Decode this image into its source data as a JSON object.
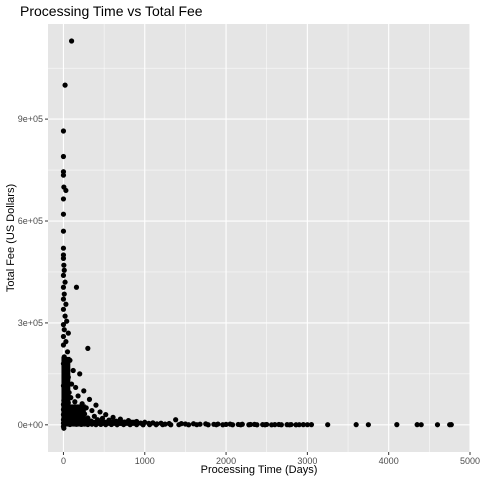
{
  "chart_data": {
    "type": "scatter",
    "title": "Processing Time vs Total Fee",
    "xlabel": "Processing Time (Days)",
    "ylabel": "Total Fee (US Dollars)",
    "xlim": [
      -190,
      5000
    ],
    "ylim": [
      -80000,
      1180000
    ],
    "x_ticks": [
      0,
      1000,
      2000,
      3000,
      4000,
      5000
    ],
    "x_tick_labels": [
      "0",
      "1000",
      "2000",
      "3000",
      "4000",
      "5000"
    ],
    "y_ticks": [
      0,
      300000,
      600000,
      900000
    ],
    "y_tick_labels": [
      "0e+00",
      "3e+05",
      "6e+05",
      "9e+05"
    ],
    "grid": true,
    "background": "#e5e5e5",
    "grid_color": "#ffffff",
    "point_color": "#000000",
    "points": [
      [
        100,
        1130000
      ],
      [
        20,
        1000000
      ],
      [
        0,
        865000
      ],
      [
        0,
        790000
      ],
      [
        0,
        745000
      ],
      [
        0,
        735000
      ],
      [
        5,
        700000
      ],
      [
        30,
        690000
      ],
      [
        0,
        665000
      ],
      [
        0,
        620000
      ],
      [
        0,
        570000
      ],
      [
        0,
        520000
      ],
      [
        0,
        500000
      ],
      [
        0,
        490000
      ],
      [
        5,
        470000
      ],
      [
        10,
        455000
      ],
      [
        0,
        440000
      ],
      [
        20,
        420000
      ],
      [
        0,
        405000
      ],
      [
        160,
        405000
      ],
      [
        10,
        385000
      ],
      [
        0,
        370000
      ],
      [
        30,
        355000
      ],
      [
        0,
        340000
      ],
      [
        20,
        320000
      ],
      [
        40,
        305000
      ],
      [
        0,
        295000
      ],
      [
        10,
        280000
      ],
      [
        60,
        270000
      ],
      [
        0,
        260000
      ],
      [
        30,
        245000
      ],
      [
        0,
        235000
      ],
      [
        300,
        225000
      ],
      [
        50,
        215000
      ],
      [
        10,
        200000
      ],
      [
        80,
        190000
      ],
      [
        0,
        180000
      ],
      [
        30,
        170000
      ],
      [
        120,
        160000
      ],
      [
        200,
        150000
      ],
      [
        60,
        140000
      ],
      [
        10,
        130000
      ],
      [
        100,
        120000
      ],
      [
        0,
        115000
      ],
      [
        150,
        110000
      ],
      [
        40,
        105000
      ],
      [
        250,
        100000
      ],
      [
        70,
        95000
      ],
      [
        20,
        90000
      ],
      [
        180,
        85000
      ],
      [
        90,
        80000
      ],
      [
        320,
        75000
      ],
      [
        5,
        72000
      ],
      [
        140,
        68000
      ],
      [
        60,
        65000
      ],
      [
        230,
        62000
      ],
      [
        400,
        58000
      ],
      [
        30,
        56000
      ],
      [
        110,
        52000
      ],
      [
        280,
        50000
      ],
      [
        190,
        46000
      ],
      [
        15,
        44000
      ],
      [
        350,
        42000
      ],
      [
        80,
        40000
      ],
      [
        450,
        38000
      ],
      [
        130,
        36000
      ],
      [
        40,
        34000
      ],
      [
        260,
        32000
      ],
      [
        520,
        30000
      ],
      [
        170,
        28000
      ],
      [
        60,
        26000
      ],
      [
        380,
        25000
      ],
      [
        220,
        24000
      ],
      [
        610,
        22000
      ],
      [
        100,
        21000
      ],
      [
        300,
        20000
      ],
      [
        480,
        19000
      ],
      [
        20,
        18000
      ],
      [
        700,
        17000
      ],
      [
        150,
        16000
      ],
      [
        420,
        15000
      ],
      [
        560,
        14000
      ],
      [
        250,
        13000
      ],
      [
        800,
        12500
      ],
      [
        90,
        12000
      ],
      [
        340,
        11000
      ],
      [
        650,
        10500
      ],
      [
        900,
        10000
      ],
      [
        50,
        9500
      ],
      [
        470,
        9000
      ],
      [
        200,
        8500
      ],
      [
        750,
        8000
      ],
      [
        1000,
        7500
      ],
      [
        580,
        7000
      ],
      [
        120,
        6500
      ],
      [
        860,
        6000
      ],
      [
        1100,
        5800
      ],
      [
        380,
        5500
      ],
      [
        950,
        5000
      ],
      [
        1200,
        4800
      ],
      [
        700,
        4500
      ],
      [
        1380,
        15000
      ],
      [
        1050,
        4200
      ],
      [
        1300,
        3800
      ],
      [
        1450,
        3500
      ],
      [
        1600,
        3200
      ],
      [
        1150,
        3000
      ],
      [
        1750,
        2800
      ],
      [
        1500,
        2500
      ],
      [
        1900,
        2300
      ],
      [
        1250,
        2100
      ],
      [
        2050,
        2000
      ],
      [
        1680,
        1800
      ],
      [
        2200,
        1600
      ],
      [
        1850,
        1500
      ],
      [
        2350,
        1400
      ],
      [
        2000,
        1300
      ],
      [
        2500,
        1200
      ],
      [
        2150,
        1100
      ],
      [
        2650,
        1000
      ],
      [
        2300,
        900
      ],
      [
        2800,
        800
      ],
      [
        2450,
        700
      ],
      [
        2950,
        650
      ],
      [
        2600,
        600
      ],
      [
        3050,
        550
      ],
      [
        2750,
        500
      ],
      [
        2900,
        450
      ],
      [
        3000,
        400
      ],
      [
        3250,
        400
      ],
      [
        3600,
        500
      ],
      [
        3750,
        400
      ],
      [
        4100,
        600
      ],
      [
        4350,
        500
      ],
      [
        4400,
        400
      ],
      [
        4600,
        300
      ],
      [
        4750,
        300
      ],
      [
        4770,
        500
      ],
      [
        0,
        60000
      ],
      [
        0,
        45000
      ],
      [
        0,
        30000
      ],
      [
        0,
        15000
      ],
      [
        0,
        5000
      ],
      [
        0,
        -5000
      ],
      [
        5,
        -10000
      ],
      [
        10,
        0
      ],
      [
        20,
        2000
      ],
      [
        40,
        8000
      ],
      [
        60,
        3000
      ],
      [
        80,
        1000
      ],
      [
        100,
        4000
      ],
      [
        130,
        2500
      ],
      [
        160,
        1500
      ],
      [
        190,
        3500
      ],
      [
        220,
        1200
      ],
      [
        260,
        2200
      ],
      [
        300,
        800
      ],
      [
        350,
        1800
      ],
      [
        400,
        600
      ],
      [
        460,
        1400
      ],
      [
        520,
        500
      ],
      [
        590,
        900
      ],
      [
        660,
        300
      ],
      [
        740,
        700
      ],
      [
        820,
        400
      ],
      [
        900,
        600
      ],
      [
        980,
        200
      ],
      [
        1060,
        500
      ],
      [
        1140,
        300
      ],
      [
        1220,
        450
      ],
      [
        1320,
        250
      ],
      [
        1420,
        400
      ],
      [
        1540,
        200
      ],
      [
        1640,
        350
      ],
      [
        1780,
        150
      ],
      [
        1880,
        300
      ],
      [
        1960,
        200
      ],
      [
        2080,
        250
      ],
      [
        2180,
        150
      ],
      [
        2280,
        200
      ],
      [
        2380,
        120
      ],
      [
        2480,
        180
      ],
      [
        2560,
        100
      ],
      [
        2680,
        150
      ],
      [
        2780,
        100
      ],
      [
        2860,
        120
      ]
    ]
  }
}
